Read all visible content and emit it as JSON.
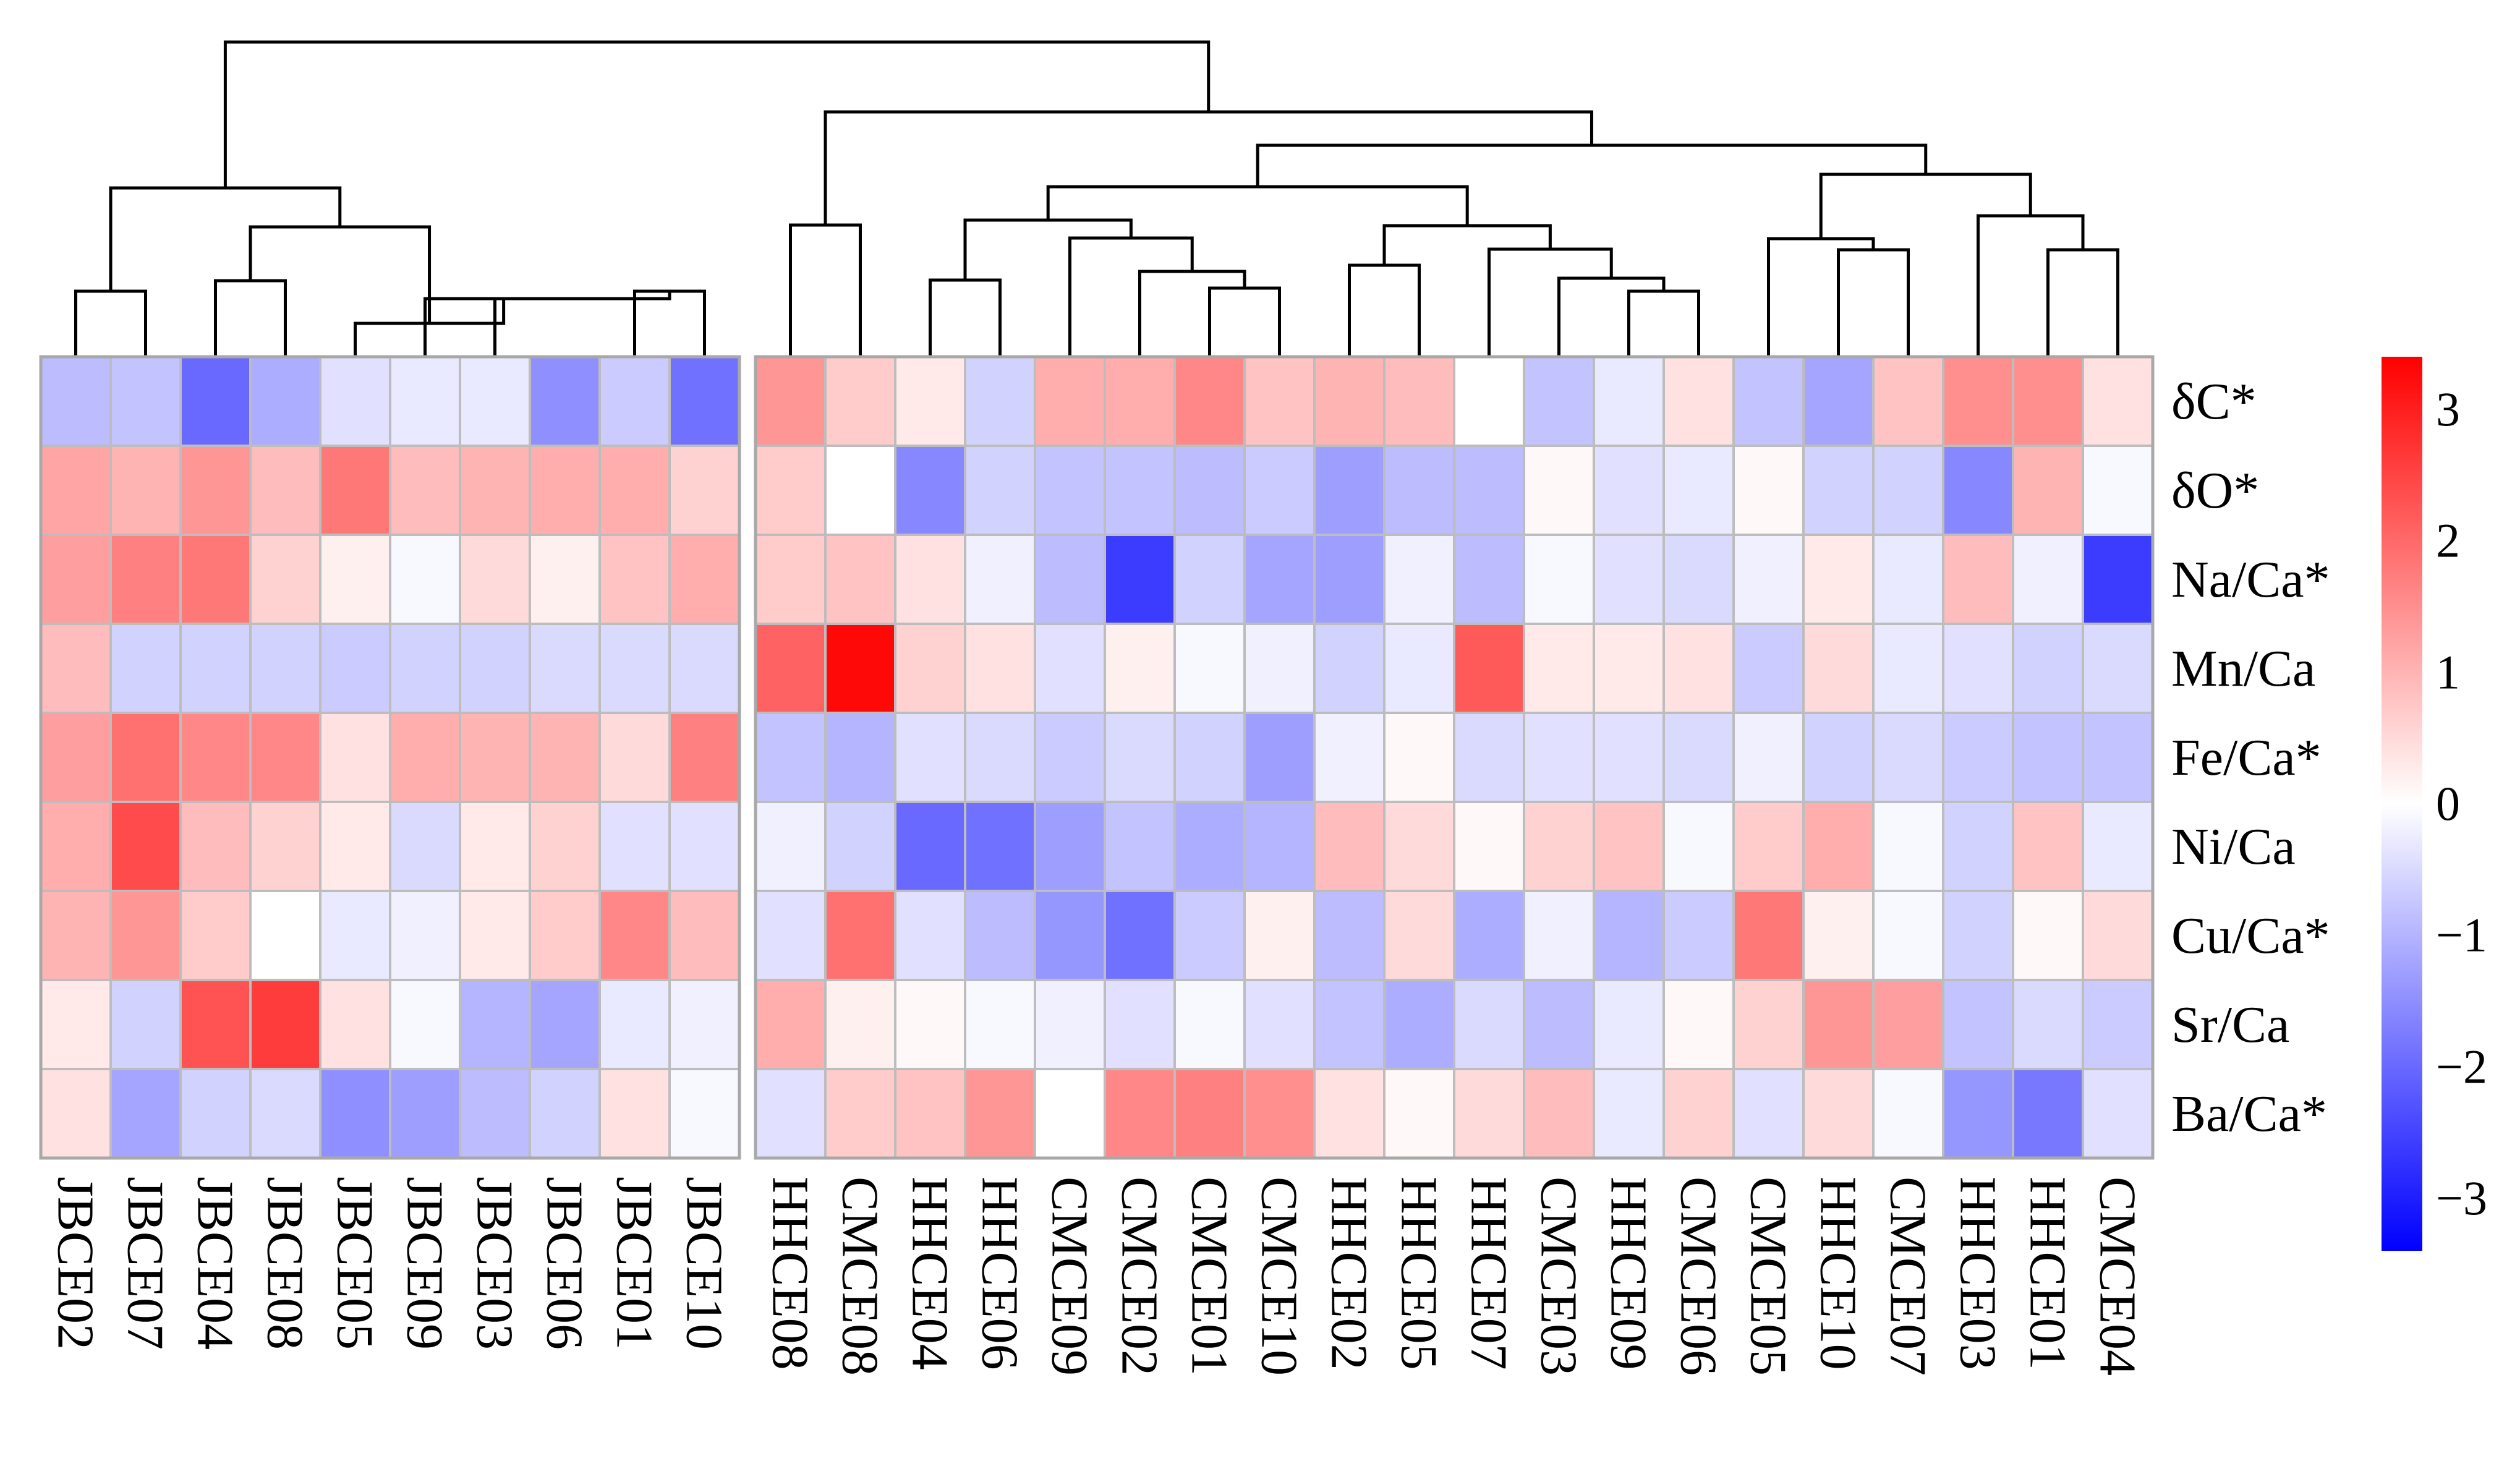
{
  "chart_data": {
    "type": "heatmap",
    "title": "",
    "columns": [
      "JBCE02",
      "JBCE07",
      "JBCE04",
      "JBCE08",
      "JBCE05",
      "JBCE09",
      "JBCE03",
      "JBCE06",
      "JBCE01",
      "JBCE10",
      "HHCE08",
      "CMCE08",
      "HHCE04",
      "HHCE06",
      "CMCE09",
      "CMCE02",
      "CMCE01",
      "CMCE10",
      "HHCE02",
      "HHCE05",
      "HHCE07",
      "CMCE03",
      "HHCE09",
      "CMCE06",
      "CMCE05",
      "HHCE10",
      "CMCE07",
      "HHCE03",
      "HHCE01",
      "CMCE04"
    ],
    "rows": [
      "δC*",
      "δO*",
      "Na/Ca*",
      "Mn/Ca",
      "Fe/Ca*",
      "Ni/Ca",
      "Cu/Ca*",
      "Sr/Ca",
      "Ba/Ca*"
    ],
    "column_groups": [
      10,
      20
    ],
    "values": [
      [
        -0.9,
        -0.8,
        -2.0,
        -1.1,
        -0.4,
        -0.3,
        -0.3,
        -1.5,
        -0.7,
        -1.9,
        1.4,
        0.7,
        0.3,
        -0.6,
        1.1,
        1.1,
        1.6,
        0.8,
        1.0,
        0.9,
        0.0,
        -0.8,
        -0.3,
        0.4,
        -0.8,
        -1.2,
        0.8,
        1.5,
        1.5,
        0.4
      ],
      [
        1.2,
        1.0,
        1.4,
        0.9,
        1.8,
        0.9,
        1.0,
        1.1,
        1.1,
        0.6,
        0.7,
        0.0,
        -1.6,
        -0.6,
        -0.8,
        -0.8,
        -0.9,
        -0.7,
        -1.3,
        -0.9,
        -0.9,
        0.1,
        -0.4,
        -0.3,
        0.1,
        -0.6,
        -0.6,
        -1.6,
        1.0,
        -0.1
      ],
      [
        1.3,
        1.7,
        1.8,
        0.6,
        0.2,
        -0.1,
        0.5,
        0.2,
        0.8,
        1.1,
        0.7,
        0.8,
        0.4,
        -0.2,
        -0.9,
        -2.6,
        -0.6,
        -1.2,
        -1.3,
        -0.2,
        -0.9,
        -0.1,
        -0.4,
        -0.5,
        -0.2,
        0.3,
        -0.3,
        0.9,
        -0.2,
        -2.6
      ],
      [
        0.9,
        -0.6,
        -0.6,
        -0.6,
        -0.7,
        -0.6,
        -0.6,
        -0.5,
        -0.5,
        -0.5,
        2.1,
        3.3,
        0.6,
        0.4,
        -0.4,
        0.2,
        -0.1,
        -0.2,
        -0.6,
        -0.3,
        2.2,
        0.3,
        0.3,
        0.4,
        -0.7,
        0.5,
        -0.3,
        -0.4,
        -0.6,
        -0.5
      ],
      [
        1.3,
        1.9,
        1.6,
        1.6,
        0.4,
        1.1,
        1.0,
        1.0,
        0.5,
        1.7,
        -0.8,
        -1.0,
        -0.4,
        -0.5,
        -0.7,
        -0.5,
        -0.6,
        -1.3,
        -0.2,
        0.1,
        -0.5,
        -0.4,
        -0.4,
        -0.5,
        -0.2,
        -0.6,
        -0.5,
        -0.7,
        -0.8,
        -0.8
      ],
      [
        1.1,
        2.4,
        0.9,
        0.6,
        0.3,
        -0.5,
        0.3,
        0.6,
        -0.4,
        -0.4,
        -0.2,
        -0.6,
        -2.0,
        -1.9,
        -1.3,
        -0.8,
        -1.1,
        -1.0,
        0.9,
        0.5,
        0.1,
        0.6,
        0.8,
        -0.1,
        0.7,
        1.1,
        -0.1,
        -0.6,
        0.8,
        -0.3
      ],
      [
        1.0,
        1.4,
        0.7,
        0.0,
        -0.3,
        -0.2,
        0.3,
        0.7,
        1.6,
        0.9,
        -0.4,
        1.9,
        -0.4,
        -0.9,
        -1.4,
        -1.9,
        -0.7,
        0.2,
        -0.9,
        0.5,
        -1.1,
        -0.2,
        -1.0,
        -0.7,
        1.8,
        0.2,
        -0.1,
        -0.6,
        0.1,
        0.5
      ],
      [
        0.3,
        -0.6,
        2.3,
        2.6,
        0.4,
        -0.1,
        -1.0,
        -1.2,
        -0.3,
        -0.2,
        1.1,
        0.2,
        0.1,
        -0.1,
        -0.2,
        -0.4,
        -0.1,
        -0.4,
        -0.8,
        -1.1,
        -0.5,
        -0.9,
        -0.3,
        0.1,
        0.6,
        1.4,
        1.3,
        -0.8,
        -0.5,
        -0.7
      ],
      [
        0.4,
        -1.2,
        -0.6,
        -0.5,
        -1.5,
        -1.3,
        -0.9,
        -0.6,
        0.4,
        -0.1,
        -0.4,
        0.7,
        0.8,
        1.4,
        0.0,
        1.6,
        1.7,
        1.5,
        0.4,
        0.1,
        0.5,
        0.9,
        -0.3,
        0.6,
        -0.4,
        0.5,
        -0.1,
        -1.4,
        -1.8,
        -0.4
      ]
    ],
    "colorbar": {
      "range": [
        -3.4,
        3.4
      ],
      "ticks": [
        "3",
        "2",
        "1",
        "0",
        "−1",
        "−2",
        "−3"
      ],
      "tick_values": [
        3,
        2,
        1,
        0,
        -1,
        -2,
        -3
      ],
      "low_color": "#0000ff",
      "mid_color": "#ffffff",
      "high_color": "#ff0000"
    },
    "col_tree": [
      [
        0,
        1
      ],
      [
        8,
        9
      ],
      [
        6,
        -2
      ],
      [
        5,
        -3
      ],
      [
        4,
        -4
      ],
      [
        3,
        2
      ],
      [
        -6,
        -5
      ],
      [
        -1,
        -7
      ],
      [
        22,
        23
      ],
      [
        21,
        -9
      ],
      [
        20,
        -10
      ],
      [
        18,
        19
      ],
      [
        -12,
        -11
      ],
      [
        16,
        17
      ],
      [
        15,
        -14
      ],
      [
        14,
        -15
      ],
      [
        12,
        13
      ],
      [
        -17,
        -16
      ],
      [
        -18,
        -13
      ],
      [
        25,
        26
      ],
      [
        24,
        -20
      ],
      [
        28,
        29
      ],
      [
        27,
        -22
      ],
      [
        -21,
        -23
      ],
      [
        -19,
        -24
      ],
      [
        11,
        10
      ],
      [
        -26,
        -25
      ],
      [
        -8,
        -27
      ]
    ]
  }
}
